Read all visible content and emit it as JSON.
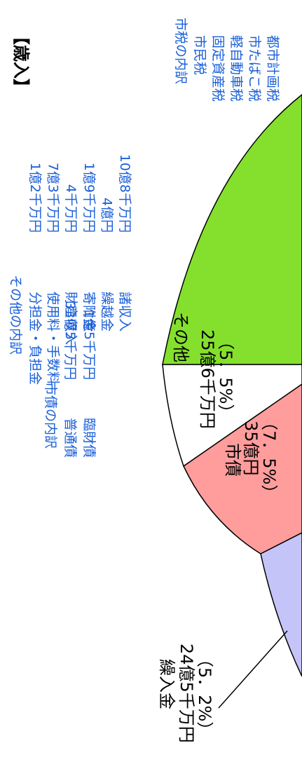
{
  "title": "【歳入】",
  "city_tax_breakdown": {
    "heading": "市税の内訳",
    "items": [
      "市民税",
      "固定資産税",
      "軽自動車税",
      "市たばこ税",
      "都市計画税"
    ]
  },
  "other_breakdown": {
    "heading": "その他の内訳",
    "items": [
      {
        "name": "分担金・負担金",
        "amount": "1億2千万円"
      },
      {
        "name": "使用料・手数料",
        "amount": "7億3千万円"
      },
      {
        "name": "財産収入",
        "amount": "4千万円"
      },
      {
        "name": "寄附金",
        "amount": "1億9千万円"
      },
      {
        "name": "繰越金",
        "amount": "4億円"
      },
      {
        "name": "諸収入",
        "amount": "10億8千万円"
      }
    ]
  },
  "bond_breakdown": {
    "heading": "市債の内訳",
    "items": [
      {
        "name": "普通債",
        "amount": "33億5千万円"
      },
      {
        "name": "臨財債",
        "amount": "1億5千万円"
      }
    ]
  },
  "slices": [
    {
      "name": "その他",
      "amount": "25億6千万円",
      "percent": 5.5,
      "percent_label": "（5．5%）"
    },
    {
      "name": "市債",
      "amount": "35億円",
      "percent": 7.5,
      "percent_label": "（7．5%）"
    },
    {
      "name": "繰入金",
      "amount": "24億5千万円",
      "percent": 5.2,
      "percent_label": "（5．2%）"
    }
  ]
}
